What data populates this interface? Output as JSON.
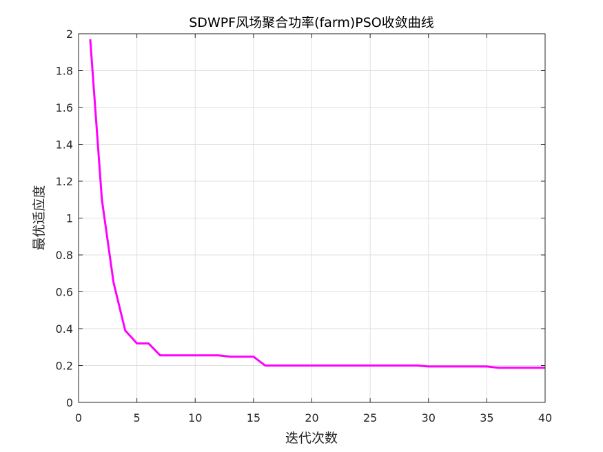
{
  "chart_data": {
    "type": "line",
    "title": "SDWPF风场聚合功率(farm)PSO收敛曲线",
    "xlabel": "迭代次数",
    "ylabel": "最优适应度",
    "xlim": [
      0,
      40
    ],
    "ylim": [
      0,
      2
    ],
    "xticks": [
      0,
      5,
      10,
      15,
      20,
      25,
      30,
      35,
      40
    ],
    "yticks": [
      0,
      0.2,
      0.4,
      0.6,
      0.8,
      1,
      1.2,
      1.4,
      1.6,
      1.8,
      2
    ],
    "xtick_labels": [
      "0",
      "5",
      "10",
      "15",
      "20",
      "25",
      "30",
      "35",
      "40"
    ],
    "ytick_labels": [
      "0",
      "0.2",
      "0.4",
      "0.6",
      "0.8",
      "1",
      "1.2",
      "1.4",
      "1.6",
      "1.8",
      "2"
    ],
    "grid": true,
    "series": [
      {
        "color": "#ff00ff",
        "x": [
          1,
          2,
          3,
          4,
          5,
          6,
          7,
          8,
          9,
          10,
          11,
          12,
          13,
          14,
          15,
          16,
          17,
          18,
          19,
          20,
          21,
          22,
          23,
          24,
          25,
          26,
          27,
          28,
          29,
          30,
          31,
          32,
          33,
          34,
          35,
          36,
          37,
          38,
          39,
          40
        ],
        "y": [
          1.97,
          1.1,
          0.65,
          0.39,
          0.32,
          0.32,
          0.255,
          0.255,
          0.255,
          0.255,
          0.255,
          0.255,
          0.248,
          0.248,
          0.248,
          0.2,
          0.2,
          0.2,
          0.2,
          0.2,
          0.2,
          0.2,
          0.2,
          0.2,
          0.2,
          0.2,
          0.2,
          0.2,
          0.2,
          0.195,
          0.195,
          0.195,
          0.195,
          0.195,
          0.195,
          0.188,
          0.188,
          0.188,
          0.188,
          0.188
        ]
      }
    ]
  }
}
